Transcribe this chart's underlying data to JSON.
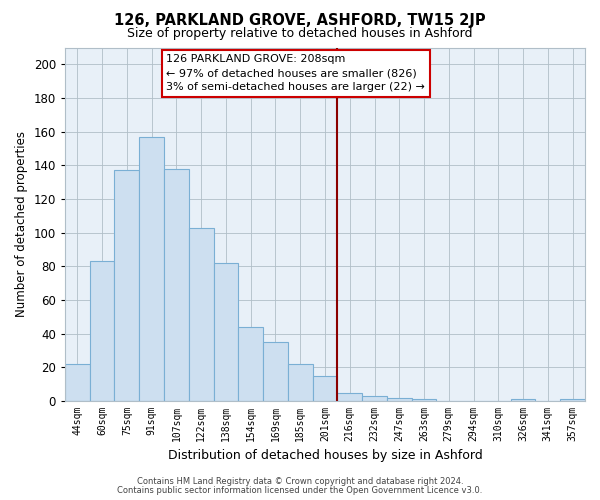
{
  "title": "126, PARKLAND GROVE, ASHFORD, TW15 2JP",
  "subtitle": "Size of property relative to detached houses in Ashford",
  "xlabel": "Distribution of detached houses by size in Ashford",
  "ylabel": "Number of detached properties",
  "bin_labels": [
    "44sqm",
    "60sqm",
    "75sqm",
    "91sqm",
    "107sqm",
    "122sqm",
    "138sqm",
    "154sqm",
    "169sqm",
    "185sqm",
    "201sqm",
    "216sqm",
    "232sqm",
    "247sqm",
    "263sqm",
    "279sqm",
    "294sqm",
    "310sqm",
    "326sqm",
    "341sqm",
    "357sqm"
  ],
  "bar_heights": [
    22,
    83,
    137,
    157,
    138,
    103,
    82,
    44,
    35,
    22,
    15,
    5,
    3,
    2,
    1,
    0,
    0,
    0,
    1,
    0,
    1
  ],
  "bar_color": "#cddff0",
  "bar_edge_color": "#7aafd4",
  "vline_x_index": 10.47,
  "vline_color": "#8b0000",
  "ylim": [
    0,
    210
  ],
  "yticks": [
    0,
    20,
    40,
    60,
    80,
    100,
    120,
    140,
    160,
    180,
    200
  ],
  "annotation_title": "126 PARKLAND GROVE: 208sqm",
  "annotation_line1": "← 97% of detached houses are smaller (826)",
  "annotation_line2": "3% of semi-detached houses are larger (22) →",
  "footer1": "Contains HM Land Registry data © Crown copyright and database right 2024.",
  "footer2": "Contains public sector information licensed under the Open Government Licence v3.0.",
  "background_color": "#ffffff",
  "plot_bg_color": "#e8f0f8",
  "grid_color": "#b0bec8"
}
